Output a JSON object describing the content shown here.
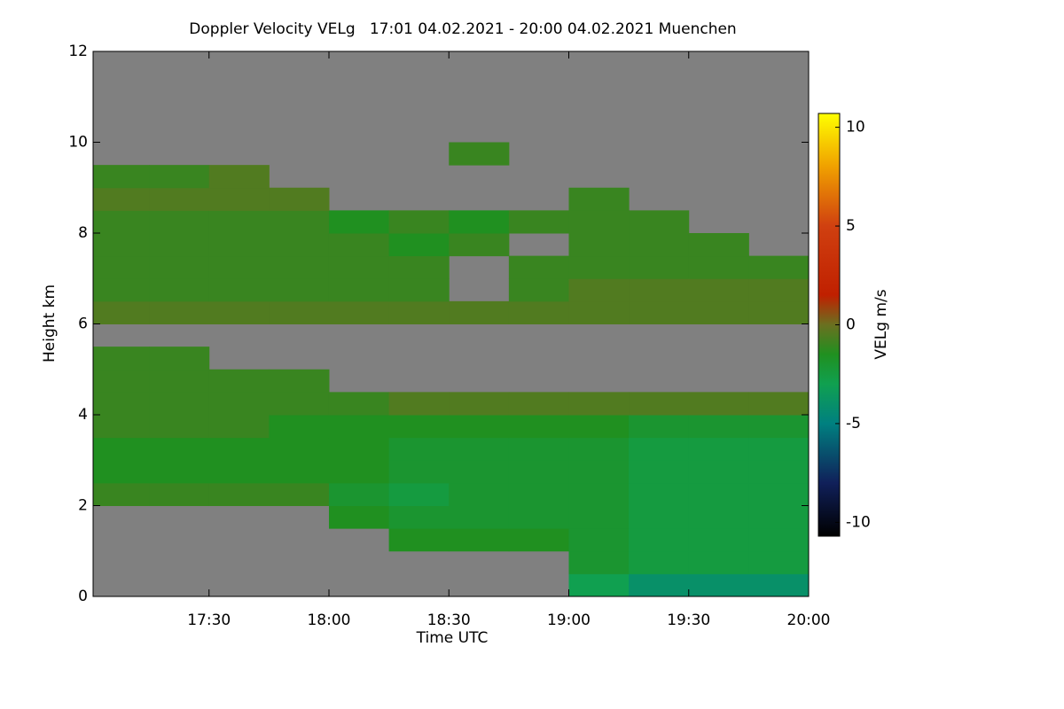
{
  "chart_data": {
    "type": "heatmap",
    "title": "Doppler Velocity VELg   17:01 04.02.2021 - 20:00 04.02.2021 Muenchen",
    "x_label": "Time UTC",
    "y_label": "Height km",
    "colorbar_label": "VELg m/s",
    "xlim": [
      17.0167,
      20.0
    ],
    "xticks": [
      {
        "value": 17.5,
        "label": "17:30"
      },
      {
        "value": 18.0,
        "label": "18:00"
      },
      {
        "value": 18.5,
        "label": "18:30"
      },
      {
        "value": 19.0,
        "label": "19:00"
      },
      {
        "value": 19.5,
        "label": "19:30"
      },
      {
        "value": 20.0,
        "label": "20:00"
      }
    ],
    "ylim": [
      0,
      12
    ],
    "yticks": [
      0,
      2,
      4,
      6,
      8,
      10,
      12
    ],
    "zlim": [
      -10.7,
      10.7
    ],
    "zticks": [
      -10,
      -5,
      0,
      5,
      10
    ],
    "no_data_color": "#808080",
    "colorscale": [
      [
        -10.7,
        "#000000"
      ],
      [
        -8,
        "#10205a"
      ],
      [
        -5,
        "#008080"
      ],
      [
        -3,
        "#10a050"
      ],
      [
        -1.5,
        "#209020"
      ],
      [
        0,
        "#6a7020"
      ],
      [
        1.5,
        "#c02000"
      ],
      [
        5,
        "#d04010"
      ],
      [
        8,
        "#f0a000"
      ],
      [
        10.7,
        "#ffff00"
      ]
    ],
    "x_edges": [
      17.0167,
      17.25,
      17.5,
      17.75,
      18.0,
      18.25,
      18.5,
      18.75,
      19.0,
      19.25,
      19.5,
      19.75,
      20.0
    ],
    "y_edges": [
      0,
      0.5,
      1,
      1.5,
      2,
      2.5,
      3,
      3.5,
      4,
      4.5,
      5,
      5.5,
      6,
      6.5,
      7,
      7.5,
      8,
      8.5,
      9,
      9.5,
      10,
      10.5,
      11,
      11.5,
      12
    ],
    "z": [
      [
        null,
        null,
        null,
        null,
        null,
        null,
        null,
        null,
        -3,
        -4,
        -4,
        -4
      ],
      [
        null,
        null,
        null,
        null,
        null,
        null,
        null,
        null,
        -2,
        -2.5,
        -2.5,
        -2.5
      ],
      [
        null,
        null,
        null,
        null,
        null,
        -1.5,
        -1.5,
        -1.5,
        -2,
        -2.5,
        -2.5,
        -2.5
      ],
      [
        null,
        null,
        null,
        null,
        -1.5,
        -2,
        -2,
        -2,
        -2,
        -2.5,
        -2.5,
        -2.5
      ],
      [
        -1,
        -1,
        -1,
        -1,
        -2,
        -2.5,
        -2,
        -2,
        -2,
        -2.5,
        -2.5,
        -2.5
      ],
      [
        -1.5,
        -1.5,
        -1.5,
        -1.5,
        -1.5,
        -2,
        -2,
        -2,
        -2,
        -2.5,
        -2.5,
        -2.5
      ],
      [
        -1.5,
        -1.5,
        -1.5,
        -1.5,
        -1.5,
        -2,
        -2,
        -2,
        -2,
        -2.5,
        -2.5,
        -2.5
      ],
      [
        -1,
        -1,
        -1,
        -1.5,
        -1.5,
        -1.5,
        -1.5,
        -1.5,
        -1.5,
        -2,
        -2,
        -2
      ],
      [
        -1,
        -1,
        -1,
        -1,
        -1,
        -0.5,
        -0.5,
        -0.5,
        -0.5,
        -0.5,
        -0.5,
        -0.5
      ],
      [
        -1,
        -1,
        -1,
        -1,
        null,
        null,
        null,
        null,
        null,
        null,
        null,
        null
      ],
      [
        -1,
        -1,
        null,
        null,
        null,
        null,
        null,
        null,
        null,
        null,
        null,
        null
      ],
      [
        null,
        null,
        null,
        null,
        null,
        null,
        null,
        null,
        null,
        null,
        null,
        null
      ],
      [
        -0.5,
        -0.5,
        -0.5,
        -0.5,
        -0.5,
        -0.5,
        -0.5,
        -0.5,
        -0.5,
        -0.5,
        -0.5,
        -0.5
      ],
      [
        -1,
        -1,
        -1,
        -1,
        -1,
        -1,
        null,
        -1,
        -0.5,
        -0.5,
        -0.5,
        -0.5
      ],
      [
        -1,
        -1,
        -1,
        -1,
        -1,
        -1,
        null,
        -1,
        -1,
        -1,
        -1,
        -1
      ],
      [
        -1,
        -1,
        -1,
        -1,
        -1,
        -1.5,
        -1,
        null,
        -1,
        -1,
        -1,
        null
      ],
      [
        -1,
        -1,
        -1,
        -1,
        -1.5,
        -1,
        -1.5,
        -1,
        -1,
        -1,
        null,
        null
      ],
      [
        -0.5,
        -0.5,
        -0.5,
        -0.5,
        null,
        null,
        null,
        null,
        -1,
        null,
        null,
        null
      ],
      [
        -1,
        -1,
        -0.5,
        null,
        null,
        null,
        null,
        null,
        null,
        null,
        null,
        null
      ],
      [
        null,
        null,
        null,
        null,
        null,
        null,
        -1,
        null,
        null,
        null,
        null,
        null
      ],
      [
        null,
        null,
        null,
        null,
        null,
        null,
        null,
        null,
        null,
        null,
        null,
        null
      ],
      [
        null,
        null,
        null,
        null,
        null,
        null,
        null,
        null,
        null,
        null,
        null,
        null
      ],
      [
        null,
        null,
        null,
        null,
        null,
        null,
        null,
        null,
        null,
        null,
        null,
        null
      ],
      [
        null,
        null,
        null,
        null,
        null,
        null,
        null,
        null,
        null,
        null,
        null,
        null
      ]
    ]
  }
}
